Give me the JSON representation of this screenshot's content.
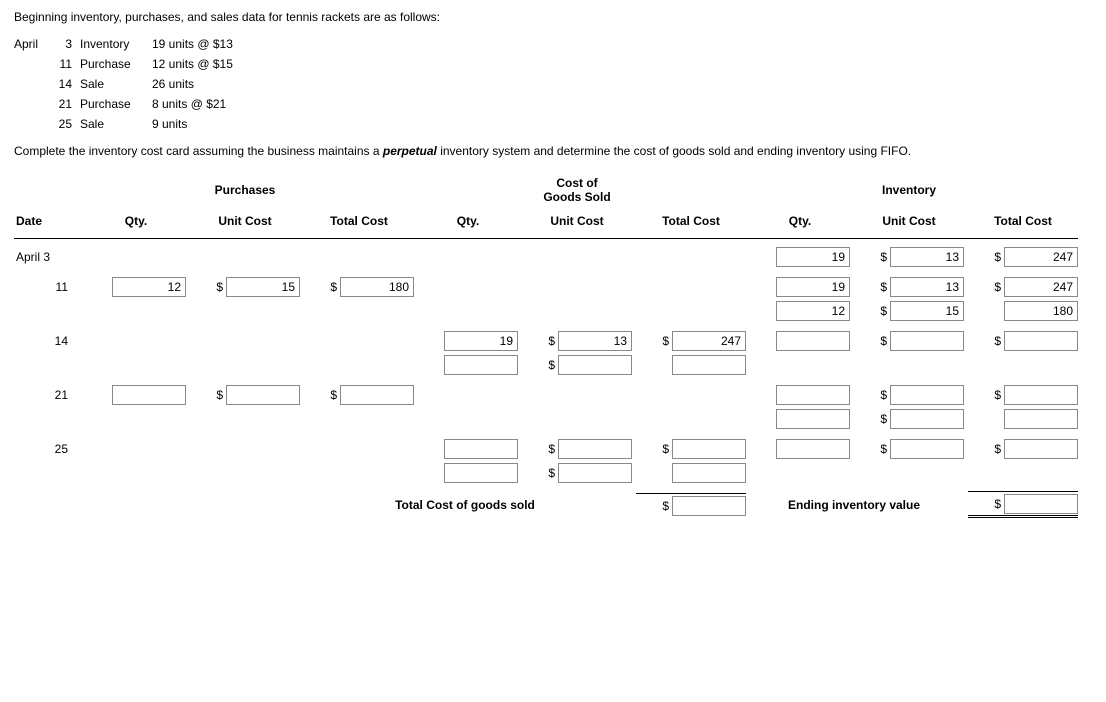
{
  "problem": {
    "intro": "Beginning inventory, purchases, and sales data for tennis rackets are as follows:",
    "transactions": [
      {
        "month": "April",
        "day": "3",
        "type": "Inventory",
        "detail": "19 units @  $13"
      },
      {
        "month": "",
        "day": "11",
        "type": "Purchase",
        "detail": "12 units @  $15"
      },
      {
        "month": "",
        "day": "14",
        "type": "Sale",
        "detail": "26 units"
      },
      {
        "month": "",
        "day": "21",
        "type": "Purchase",
        "detail": "8 units @  $21"
      },
      {
        "month": "",
        "day": "25",
        "type": "Sale",
        "detail": "9 units"
      }
    ],
    "instruction_pre": "Complete the inventory cost card assuming the business maintains a ",
    "instruction_em": "perpetual",
    "instruction_post": " inventory system and determine the cost of goods sold and ending inventory using FIFO."
  },
  "headers": {
    "section_purchases": "Purchases",
    "section_cogs_l1": "Cost of",
    "section_cogs_l2": "Goods Sold",
    "section_inventory": "Inventory",
    "date": "Date",
    "qty": "Qty.",
    "unit_cost": "Unit Cost",
    "total_cost": "Total Cost"
  },
  "dollar_sign": "$",
  "dates": {
    "d1": "April  3",
    "d2": "11",
    "d3": "14",
    "d4": "21",
    "d5": "25"
  },
  "values": {
    "r1_inv_qty": "19",
    "r1_inv_uc": "13",
    "r1_inv_tc": "247",
    "r2_pur_qty": "12",
    "r2_pur_uc": "15",
    "r2_pur_tc": "180",
    "r2_inv_qty": "19",
    "r2_inv_uc": "13",
    "r2_inv_tc": "247",
    "r2b_inv_qty": "12",
    "r2b_inv_uc": "15",
    "r2b_inv_tc": "180",
    "r3_cogs_qty": "19",
    "r3_cogs_uc": "13",
    "r3_cogs_tc": "247"
  },
  "footer": {
    "total_cogs_label": "Total Cost of goods sold",
    "ending_inv_label": "Ending inventory value"
  }
}
